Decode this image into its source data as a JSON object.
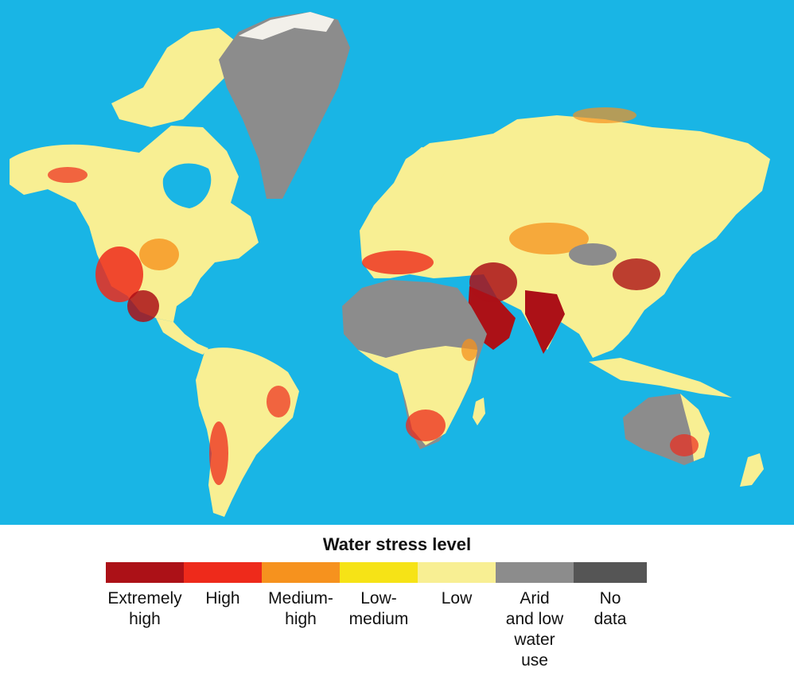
{
  "colors": {
    "ocean": "#19b5e5",
    "extremely_high": "#ac1117",
    "high": "#ee2a1b",
    "medium_high": "#f6921e",
    "low_medium": "#f6e316",
    "low": "#f8ef93",
    "arid": "#8c8c8c",
    "no_data": "#555555",
    "ice": "#f2f0ea"
  },
  "legend": {
    "title": "Water stress level",
    "categories": [
      {
        "label": "Extremely\nhigh",
        "color": "#ac1117"
      },
      {
        "label": "High",
        "color": "#ee2a1b"
      },
      {
        "label": "Medium-\nhigh",
        "color": "#f6921e"
      },
      {
        "label": "Low-\nmedium",
        "color": "#f6e316"
      },
      {
        "label": "Low",
        "color": "#f8ef93"
      },
      {
        "label": "Arid\nand low\nwater\nuse",
        "color": "#8c8c8c"
      },
      {
        "label": "No\ndata",
        "color": "#555555"
      }
    ]
  }
}
